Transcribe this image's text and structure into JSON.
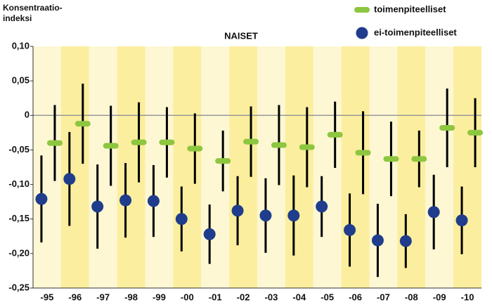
{
  "chart_data": {
    "type": "errorbar",
    "title": "NAISET",
    "y_label": "Konsentraatio-\nindeksi",
    "categories": [
      "-95",
      "-96",
      "-97",
      "-98",
      "-99",
      "-00",
      "-01",
      "-02",
      "-03",
      "-04",
      "-05",
      "-06",
      "-07",
      "-08",
      "-09",
      "-10"
    ],
    "series": [
      {
        "name": "toimenpiteelliset",
        "color": "#8dc63f",
        "marker": "dash",
        "values": [
          -0.04,
          -0.012,
          -0.044,
          -0.039,
          -0.039,
          -0.048,
          -0.066,
          -0.038,
          -0.043,
          -0.046,
          -0.028,
          -0.054,
          -0.063,
          -0.063,
          -0.018,
          -0.025
        ],
        "errors": [
          0.055,
          0.058,
          0.058,
          0.058,
          0.051,
          0.051,
          0.044,
          0.051,
          0.058,
          0.058,
          0.048,
          0.06,
          0.054,
          0.041,
          0.057,
          0.05
        ]
      },
      {
        "name": "ei-toimenpiteelliset",
        "color": "#1f3d8c",
        "marker": "circle",
        "values": [
          -0.121,
          -0.092,
          -0.132,
          -0.123,
          -0.124,
          -0.15,
          -0.172,
          -0.138,
          -0.145,
          -0.145,
          -0.132,
          -0.166,
          -0.181,
          -0.182,
          -0.14,
          -0.152
        ],
        "errors": [
          0.063,
          0.068,
          0.061,
          0.054,
          0.052,
          0.047,
          0.043,
          0.05,
          0.054,
          0.058,
          0.044,
          0.053,
          0.053,
          0.039,
          0.054,
          0.049
        ]
      }
    ],
    "ylim": [
      -0.25,
      0.1
    ],
    "yticks": [
      {
        "value": -0.25,
        "label": "-0,25"
      },
      {
        "value": -0.2,
        "label": "-0,20"
      },
      {
        "value": -0.15,
        "label": "-0,15"
      },
      {
        "value": -0.1,
        "label": "-0,10"
      },
      {
        "value": -0.05,
        "label": "-0,05"
      },
      0,
      {
        "value": 0.05,
        "label": "0,05"
      },
      {
        "value": 0.1,
        "label": "0,10"
      }
    ],
    "grid": false,
    "legend": "top-right"
  }
}
